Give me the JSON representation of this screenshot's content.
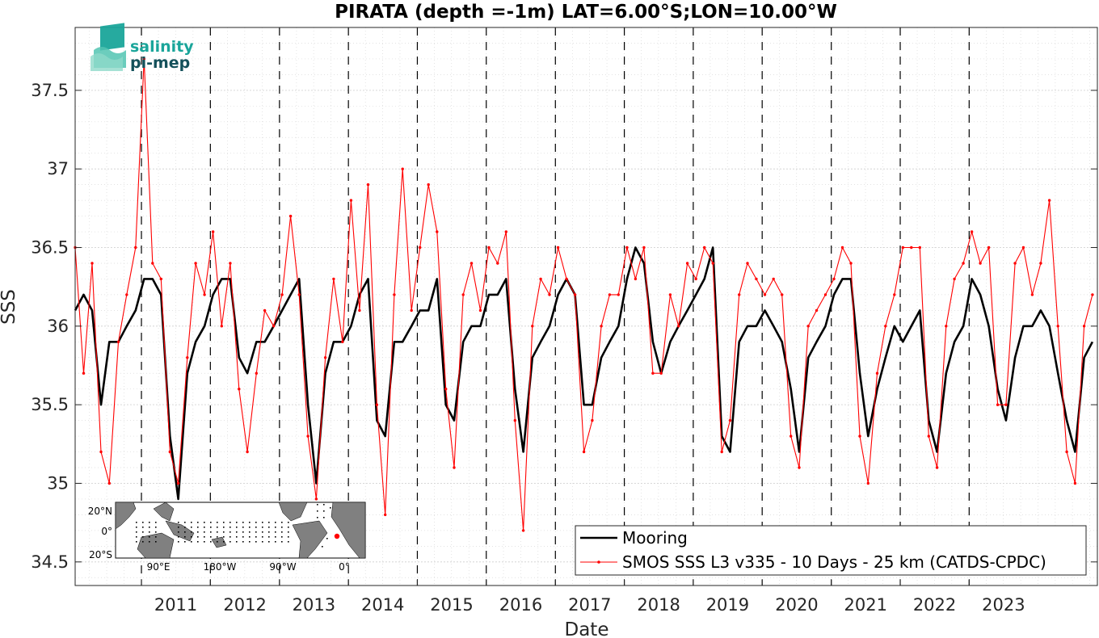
{
  "chart_data": {
    "type": "line",
    "title": "PIRATA (depth =-1m) LAT=6.00°S;LON=10.00°W",
    "xlabel": "Date",
    "ylabel": "SSS",
    "xlim": [
      "2010-01-15",
      "2024-11-10"
    ],
    "ylim": [
      34.35,
      37.9
    ],
    "y_ticks": [
      "34.5",
      "35",
      "35.5",
      "36",
      "36.5",
      "37",
      "37.5"
    ],
    "x_ticks": [
      "2011",
      "2012",
      "2013",
      "2014",
      "2015",
      "2016",
      "2017",
      "2018",
      "2019",
      "2020",
      "2021",
      "2022",
      "2023"
    ],
    "grid": true,
    "legend_position": "bottom-right",
    "series": [
      {
        "name": "Mooring",
        "color": "#000000",
        "x": [
          "2010-01-15",
          "2010-03-01",
          "2010-04-15",
          "2010-06-01",
          "2010-07-15",
          "2010-09-01",
          "2010-10-15",
          "2010-12-01",
          "2011-01-15",
          "2011-03-01",
          "2011-04-15",
          "2011-06-01",
          "2011-07-15",
          "2011-09-01",
          "2011-10-15",
          "2011-12-01",
          "2012-01-15",
          "2012-03-01",
          "2012-04-15",
          "2012-06-01",
          "2012-07-15",
          "2012-09-01",
          "2012-10-15",
          "2012-12-01",
          "2013-01-15",
          "2013-03-01",
          "2013-04-15",
          "2013-06-01",
          "2013-07-15",
          "2013-09-01",
          "2013-10-15",
          "2013-12-01",
          "2014-01-15",
          "2014-03-01",
          "2014-04-15",
          "2014-06-01",
          "2014-07-15",
          "2014-09-01",
          "2014-10-15",
          "2014-12-01",
          "2015-01-15",
          "2015-03-01",
          "2015-04-15",
          "2015-06-01",
          "2015-07-15",
          "2015-09-01",
          "2015-10-15",
          "2015-12-01",
          "2016-01-15",
          "2016-03-01",
          "2016-04-15",
          "2016-06-01",
          "2016-07-15",
          "2016-09-01",
          "2016-10-15",
          "2016-12-01",
          "2017-01-15",
          "2017-03-01",
          "2017-04-15",
          "2017-06-01",
          "2017-07-15",
          "2017-09-01",
          "2017-10-15",
          "2017-12-01",
          "2018-01-15",
          "2018-03-01",
          "2018-04-15",
          "2018-06-01",
          "2018-07-15",
          "2018-09-01",
          "2018-10-15",
          "2018-12-01",
          "2019-01-15",
          "2019-03-01",
          "2019-04-15",
          "2019-06-01",
          "2019-07-15",
          "2019-09-01",
          "2019-10-15",
          "2019-12-01",
          "2020-01-15",
          "2020-03-01",
          "2020-04-15",
          "2020-06-01",
          "2020-07-15",
          "2020-09-01",
          "2020-10-15",
          "2020-12-01",
          "2021-01-15",
          "2021-03-01",
          "2021-04-15",
          "2021-06-01",
          "2021-07-15",
          "2021-09-01",
          "2021-10-15",
          "2021-12-01",
          "2022-01-15",
          "2022-03-01",
          "2022-04-15",
          "2022-06-01",
          "2022-07-15",
          "2022-09-01",
          "2022-10-15",
          "2022-12-01",
          "2023-01-15",
          "2023-03-01",
          "2023-04-15",
          "2023-06-01",
          "2023-07-15",
          "2023-09-01",
          "2023-10-15",
          "2023-12-01",
          "2024-01-15",
          "2024-03-01",
          "2024-04-15",
          "2024-06-01",
          "2024-07-15",
          "2024-09-01",
          "2024-10-15"
        ],
        "values": [
          36.1,
          36.2,
          36.1,
          35.5,
          35.9,
          35.9,
          36.0,
          36.1,
          36.3,
          36.3,
          36.2,
          35.3,
          34.9,
          35.7,
          35.9,
          36.0,
          36.2,
          36.3,
          36.3,
          35.8,
          35.7,
          35.9,
          35.9,
          36.0,
          36.1,
          36.2,
          36.3,
          35.5,
          35.0,
          35.7,
          35.9,
          35.9,
          36.0,
          36.2,
          36.3,
          35.4,
          35.3,
          35.9,
          35.9,
          36.0,
          36.1,
          36.1,
          36.3,
          35.5,
          35.4,
          35.9,
          36.0,
          36.0,
          36.2,
          36.2,
          36.3,
          35.6,
          35.2,
          35.8,
          35.9,
          36.0,
          36.2,
          36.3,
          36.2,
          35.5,
          35.5,
          35.8,
          35.9,
          36.0,
          36.3,
          36.5,
          36.4,
          35.9,
          35.7,
          35.9,
          36.0,
          36.1,
          36.2,
          36.3,
          36.5,
          35.3,
          35.2,
          35.9,
          36.0,
          36.0,
          36.1,
          36.0,
          35.9,
          35.6,
          35.2,
          35.8,
          35.9,
          36.0,
          36.2,
          36.3,
          36.3,
          35.7,
          35.3,
          35.6,
          35.8,
          36.0,
          35.9,
          36.0,
          36.1,
          35.4,
          35.2,
          35.7,
          35.9,
          36.0,
          36.3,
          36.2,
          36.0,
          35.6,
          35.4,
          35.8,
          36.0,
          36.0,
          36.1,
          36.0,
          35.7,
          35.4,
          35.2,
          35.8,
          35.9
        ]
      },
      {
        "name": "SMOS SSS L3 v335 - 10 Days - 25 km (CATDS-CPDC)",
        "color": "#ff0000",
        "x": [
          "2010-01-15",
          "2010-03-01",
          "2010-04-15",
          "2010-06-01",
          "2010-07-15",
          "2010-09-01",
          "2010-10-15",
          "2010-12-01",
          "2011-01-15",
          "2011-03-01",
          "2011-04-15",
          "2011-06-01",
          "2011-07-15",
          "2011-09-01",
          "2011-10-15",
          "2011-12-01",
          "2012-01-15",
          "2012-03-01",
          "2012-04-15",
          "2012-06-01",
          "2012-07-15",
          "2012-09-01",
          "2012-10-15",
          "2012-12-01",
          "2013-01-15",
          "2013-03-01",
          "2013-04-15",
          "2013-06-01",
          "2013-07-15",
          "2013-09-01",
          "2013-10-15",
          "2013-12-01",
          "2014-01-15",
          "2014-03-01",
          "2014-04-15",
          "2014-06-01",
          "2014-07-15",
          "2014-09-01",
          "2014-10-15",
          "2014-12-01",
          "2015-01-15",
          "2015-03-01",
          "2015-04-15",
          "2015-06-01",
          "2015-07-15",
          "2015-09-01",
          "2015-10-15",
          "2015-12-01",
          "2016-01-15",
          "2016-03-01",
          "2016-04-15",
          "2016-06-01",
          "2016-07-15",
          "2016-09-01",
          "2016-10-15",
          "2016-12-01",
          "2017-01-15",
          "2017-03-01",
          "2017-04-15",
          "2017-06-01",
          "2017-07-15",
          "2017-09-01",
          "2017-10-15",
          "2017-12-01",
          "2018-01-15",
          "2018-03-01",
          "2018-04-15",
          "2018-06-01",
          "2018-07-15",
          "2018-09-01",
          "2018-10-15",
          "2018-12-01",
          "2019-01-15",
          "2019-03-01",
          "2019-04-15",
          "2019-06-01",
          "2019-07-15",
          "2019-09-01",
          "2019-10-15",
          "2019-12-01",
          "2020-01-15",
          "2020-03-01",
          "2020-04-15",
          "2020-06-01",
          "2020-07-15",
          "2020-09-01",
          "2020-10-15",
          "2020-12-01",
          "2021-01-15",
          "2021-03-01",
          "2021-04-15",
          "2021-06-01",
          "2021-07-15",
          "2021-09-01",
          "2021-10-15",
          "2021-12-01",
          "2022-01-15",
          "2022-03-01",
          "2022-04-15",
          "2022-06-01",
          "2022-07-15",
          "2022-09-01",
          "2022-10-15",
          "2022-12-01",
          "2023-01-15",
          "2023-03-01",
          "2023-04-15",
          "2023-06-01",
          "2023-07-15",
          "2023-09-01",
          "2023-10-15",
          "2023-12-01",
          "2024-01-15",
          "2024-03-01",
          "2024-04-15",
          "2024-06-01",
          "2024-07-15",
          "2024-09-01",
          "2024-10-15"
        ],
        "values": [
          36.5,
          35.7,
          36.4,
          35.2,
          35.0,
          35.9,
          36.2,
          36.5,
          37.7,
          36.4,
          36.3,
          35.2,
          35.0,
          35.8,
          36.4,
          36.2,
          36.6,
          36.0,
          36.4,
          35.6,
          35.2,
          35.7,
          36.1,
          36.0,
          36.2,
          36.7,
          36.2,
          35.3,
          34.9,
          35.8,
          36.3,
          35.9,
          36.8,
          36.1,
          36.9,
          35.5,
          34.8,
          36.2,
          37.0,
          36.1,
          36.5,
          36.9,
          36.6,
          35.6,
          35.1,
          36.2,
          36.4,
          36.1,
          36.5,
          36.4,
          36.6,
          35.4,
          34.7,
          36.0,
          36.3,
          36.2,
          36.5,
          36.3,
          36.2,
          35.2,
          35.4,
          36.0,
          36.2,
          36.2,
          36.5,
          36.3,
          36.5,
          35.7,
          35.7,
          36.2,
          36.0,
          36.4,
          36.3,
          36.5,
          36.4,
          35.2,
          35.4,
          36.2,
          36.4,
          36.3,
          36.2,
          36.3,
          36.2,
          35.3,
          35.1,
          36.0,
          36.1,
          36.2,
          36.3,
          36.5,
          36.4,
          35.3,
          35.0,
          35.7,
          36.0,
          36.2,
          36.5,
          36.5,
          36.5,
          35.3,
          35.1,
          36.0,
          36.3,
          36.4,
          36.6,
          36.4,
          36.5,
          35.5,
          35.5,
          36.4,
          36.5,
          36.2,
          36.4,
          36.8,
          36.0,
          35.2,
          35.0,
          36.0,
          36.2
        ]
      }
    ]
  },
  "logo": {
    "line1": "salinity",
    "line2": "pi-mep"
  },
  "inset_map": {
    "lat_labels": [
      "20°N",
      "0°",
      "20°S"
    ],
    "lon_labels": [
      "90°E",
      "180°W",
      "90°W",
      "0°"
    ],
    "marker_color": "#ff0000"
  },
  "colors": {
    "grid": "#d9d9d9",
    "axis": "#262626",
    "land": "#808080",
    "logo_teal": "#1aa59a",
    "logo_dark": "#14505a"
  }
}
